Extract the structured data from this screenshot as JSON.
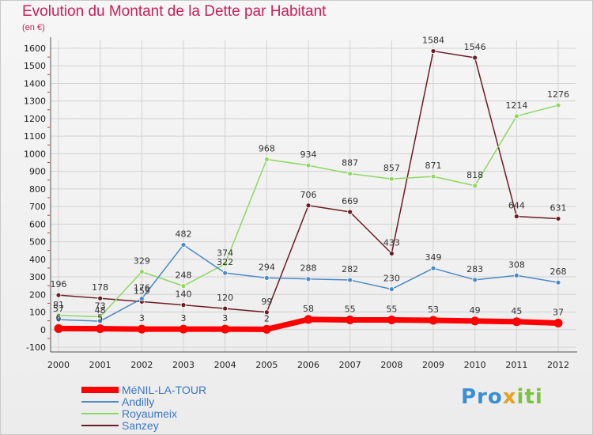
{
  "header": {
    "title": "Evolution du Montant de la Dette par Habitant",
    "subtitle": "(en €)"
  },
  "logo": {
    "parts": [
      "Pro",
      "x",
      "iti"
    ]
  },
  "chart_data": {
    "type": "line",
    "categories": [
      "2000",
      "2001",
      "2002",
      "2003",
      "2004",
      "2005",
      "2006",
      "2007",
      "2008",
      "2009",
      "2010",
      "2011",
      "2012"
    ],
    "ylim": [
      -100,
      1600
    ],
    "yticks": [
      -100,
      0,
      100,
      200,
      300,
      400,
      500,
      600,
      700,
      800,
      900,
      1000,
      1100,
      1200,
      1300,
      1400,
      1500,
      1600
    ],
    "grid": true,
    "legend_position": "bottom-left",
    "series": [
      {
        "name": "Sanzey",
        "color": "#6b1c24",
        "width": 1.5,
        "values": [
          196,
          178,
          159,
          140,
          120,
          99,
          706,
          669,
          433,
          1584,
          1546,
          644,
          631
        ]
      },
      {
        "name": "Royaumeix",
        "color": "#8ed860",
        "width": 1.5,
        "values": [
          81,
          73,
          329,
          248,
          374,
          968,
          934,
          887,
          857,
          871,
          818,
          1214,
          1276
        ]
      },
      {
        "name": "Andilly",
        "color": "#4a8ac8",
        "width": 1.5,
        "values": [
          57,
          48,
          176,
          482,
          322,
          294,
          288,
          282,
          230,
          349,
          283,
          308,
          268
        ]
      },
      {
        "name": "MéNIL-LA-TOUR",
        "color": "#ff0000",
        "width": 7,
        "values": [
          6,
          5,
          3,
          3,
          3,
          2,
          58,
          55,
          55,
          53,
          49,
          45,
          37
        ]
      }
    ],
    "legend_order": [
      "MéNIL-LA-TOUR",
      "Andilly",
      "Royaumeix",
      "Sanzey"
    ]
  }
}
